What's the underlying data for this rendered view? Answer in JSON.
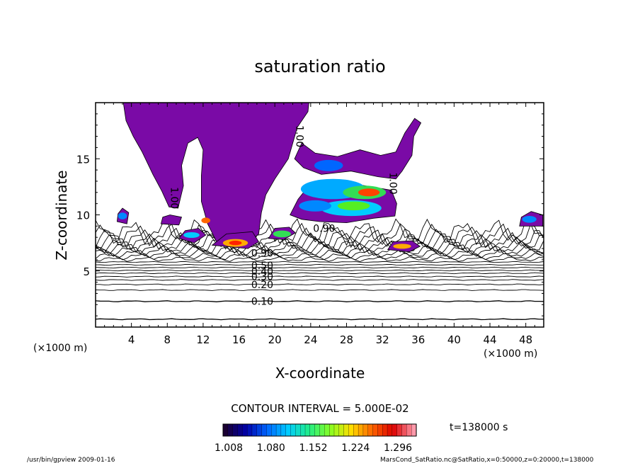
{
  "chart_data": {
    "type": "contour",
    "title": "saturation ratio",
    "xlabel": "X-coordinate",
    "ylabel": "Z-coordinate",
    "x_unit": "(×1000 m)",
    "y_unit": "(×1000 m)",
    "xlim": [
      0,
      50
    ],
    "ylim": [
      0,
      20
    ],
    "x_ticks": [
      4,
      8,
      12,
      16,
      20,
      24,
      28,
      32,
      36,
      40,
      44,
      48
    ],
    "y_ticks": [
      5,
      10,
      15
    ],
    "contour_interval_text": "CONTOUR INTERVAL = 5.000E-02",
    "contour_labels": [
      {
        "text": "0.10",
        "x": 18.6,
        "z": 2.3
      },
      {
        "text": "0.20",
        "x": 18.6,
        "z": 3.8
      },
      {
        "text": "0.30",
        "x": 18.6,
        "z": 4.5
      },
      {
        "text": "0.40",
        "x": 18.6,
        "z": 5.0
      },
      {
        "text": "0.50",
        "x": 18.6,
        "z": 5.5
      },
      {
        "text": "0.90",
        "x": 18.6,
        "z": 6.6
      },
      {
        "text": "0.90",
        "x": 25.5,
        "z": 8.8
      },
      {
        "text": "1.00",
        "x": 22.8,
        "z": 17.0
      },
      {
        "text": "1.00",
        "x": 8.8,
        "z": 11.5
      },
      {
        "text": "1.00",
        "x": 33.2,
        "z": 12.8
      }
    ],
    "colorbar": {
      "ticks": [
        "1.008",
        "1.080",
        "1.152",
        "1.224",
        "1.296"
      ],
      "colors": [
        "#1a0033",
        "#0000aa",
        "#0066ff",
        "#00ccff",
        "#22ee88",
        "#88ff22",
        "#ffdd00",
        "#ff6600",
        "#dd0000",
        "#ff99aa"
      ]
    },
    "time_label": "t=138000 s",
    "fill_color": "#7a0aa6"
  },
  "footer": {
    "left": "/usr/bin/gpview  2009-01-16",
    "right": "MarsCond_SatRatio.nc@SatRatio,x=0:50000,z=0:20000,t=138000"
  }
}
